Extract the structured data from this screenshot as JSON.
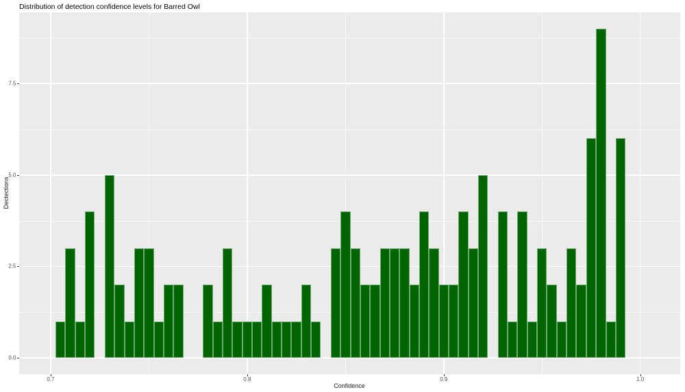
{
  "chart_data": {
    "type": "bar",
    "subtype": "histogram",
    "title": "Distribution of detection confidence levels for Barred Owl",
    "xlabel": "Confidence",
    "ylabel": "Dectections",
    "legend_position": "none",
    "grid": true,
    "binwidth": 0.005,
    "bin_centers": [
      0.705,
      0.71,
      0.715,
      0.72,
      0.725,
      0.73,
      0.735,
      0.74,
      0.745,
      0.75,
      0.755,
      0.76,
      0.765,
      0.77,
      0.775,
      0.78,
      0.785,
      0.79,
      0.795,
      0.8,
      0.805,
      0.81,
      0.815,
      0.82,
      0.825,
      0.83,
      0.835,
      0.84,
      0.845,
      0.85,
      0.855,
      0.86,
      0.865,
      0.87,
      0.875,
      0.88,
      0.885,
      0.89,
      0.895,
      0.9,
      0.905,
      0.91,
      0.915,
      0.92,
      0.925,
      0.93,
      0.935,
      0.94,
      0.945,
      0.95,
      0.955,
      0.96,
      0.965,
      0.97,
      0.975,
      0.98,
      0.985,
      0.99
    ],
    "counts": [
      1,
      3,
      1,
      4,
      0,
      5,
      2,
      1,
      3,
      3,
      1,
      2,
      2,
      0,
      0,
      2,
      1,
      3,
      1,
      1,
      1,
      2,
      1,
      1,
      1,
      2,
      1,
      0,
      3,
      4,
      3,
      2,
      2,
      3,
      3,
      3,
      2,
      4,
      3,
      2,
      2,
      4,
      3,
      5,
      0,
      4,
      1,
      4,
      1,
      3,
      2,
      1,
      3,
      2,
      6,
      9,
      1,
      6
    ],
    "x_ticks": [
      0.7,
      0.8,
      0.9,
      1.0
    ],
    "x_tick_labels": [
      "0.7",
      "0.8",
      "0.9",
      "1.0"
    ],
    "x_minor_gridlines": [
      0.75,
      0.85,
      0.95
    ],
    "y_ticks": [
      0.0,
      2.5,
      5.0,
      7.5
    ],
    "y_tick_labels": [
      "0.0",
      "2.5",
      "5.0",
      "7.5"
    ],
    "y_minor_gridlines": [
      1.25,
      3.75,
      6.25,
      8.75
    ],
    "xlim": [
      0.684,
      1.0203
    ],
    "ylim": [
      -0.45,
      9.45
    ],
    "colors": {
      "bar_fill": "#006400",
      "bar_edge_highlight": "rgba(255,255,255,0.45)",
      "panel_background": "#EBEBEB",
      "major_gridline": "#FFFFFF",
      "minor_gridline": "rgba(255,255,255,0.6)",
      "tick_text": "#4D4D4D",
      "tick_mark": "#333333",
      "title_text": "#000000",
      "figure_background": "#FFFFFF"
    }
  }
}
